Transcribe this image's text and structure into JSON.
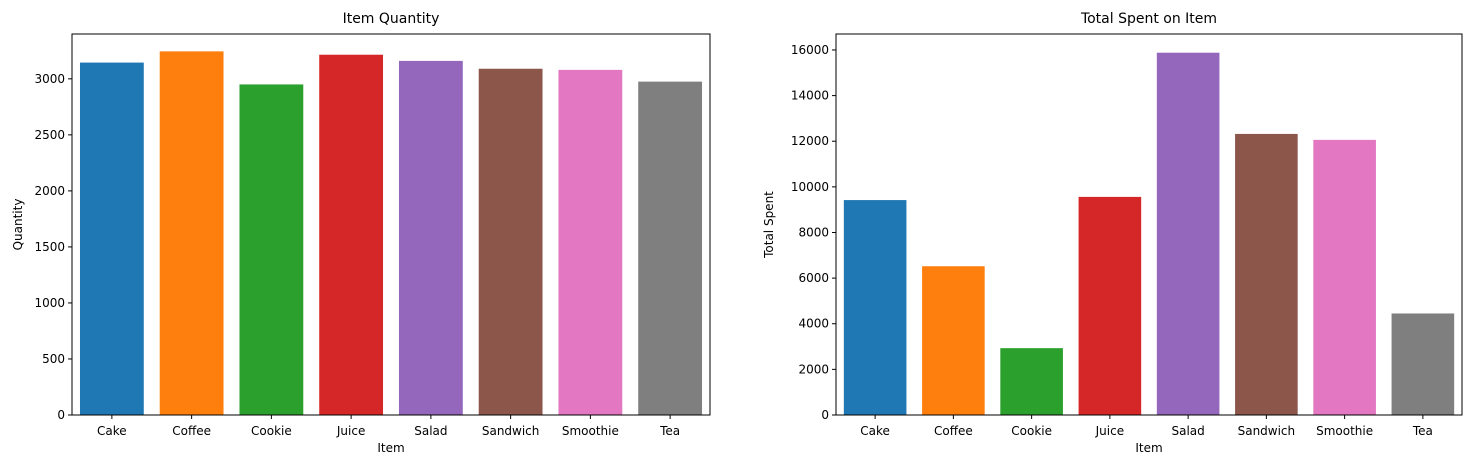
{
  "chart_data": [
    {
      "type": "bar",
      "title": "Item Quantity",
      "xlabel": "Item",
      "ylabel": "Quantity",
      "categories": [
        "Cake",
        "Coffee",
        "Cookie",
        "Juice",
        "Salad",
        "Sandwich",
        "Smoothie",
        "Tea"
      ],
      "values": [
        3145,
        3245,
        2950,
        3215,
        3160,
        3090,
        3080,
        2975
      ],
      "ylim": [
        0,
        3400
      ],
      "yticks": [
        0,
        500,
        1000,
        1500,
        2000,
        2500,
        3000
      ],
      "colors": [
        "#1f77b4",
        "#ff7f0e",
        "#2ca02c",
        "#d62728",
        "#9467bd",
        "#8c564b",
        "#e377c2",
        "#7f7f7f"
      ],
      "grid": false
    },
    {
      "type": "bar",
      "title": "Total Spent on Item",
      "xlabel": "Item",
      "ylabel": "Total Spent",
      "categories": [
        "Cake",
        "Coffee",
        "Cookie",
        "Juice",
        "Salad",
        "Sandwich",
        "Smoothie",
        "Tea"
      ],
      "values": [
        9420,
        6520,
        2930,
        9560,
        15880,
        12320,
        12060,
        4450
      ],
      "ylim": [
        0,
        16700
      ],
      "yticks": [
        0,
        2000,
        4000,
        6000,
        8000,
        10000,
        12000,
        14000,
        16000
      ],
      "colors": [
        "#1f77b4",
        "#ff7f0e",
        "#2ca02c",
        "#d62728",
        "#9467bd",
        "#8c564b",
        "#e377c2",
        "#7f7f7f"
      ],
      "grid": false
    }
  ]
}
